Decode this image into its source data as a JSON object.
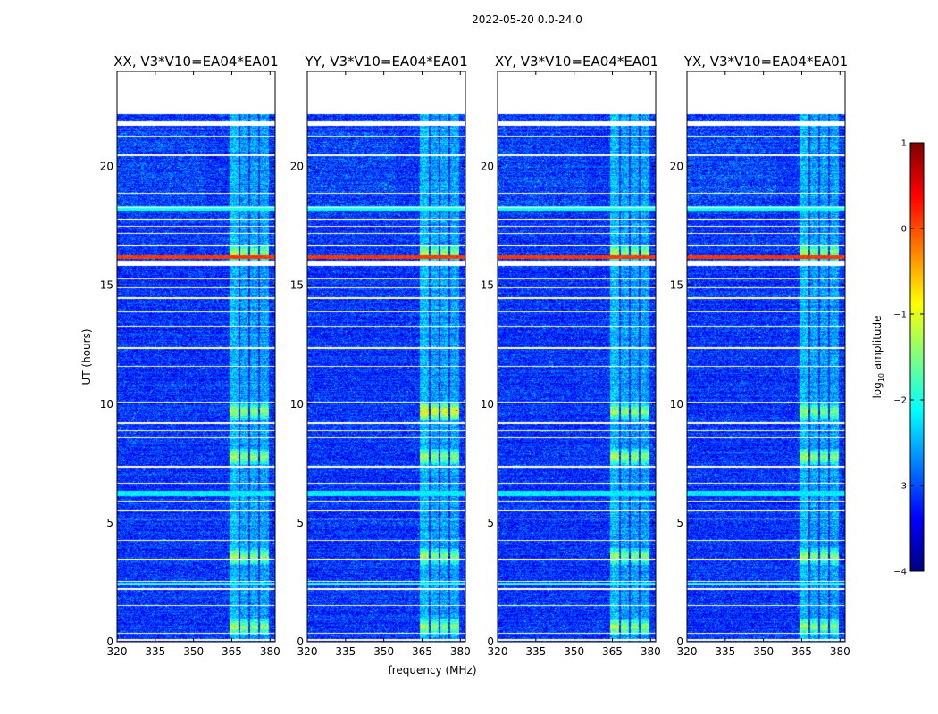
{
  "chart_data": {
    "type": "heatmap",
    "suptitle": "2022-05-20 0.0-24.0",
    "xlabel": "frequency (MHz)",
    "ylabel": "UT (hours)",
    "x_range": [
      320,
      382
    ],
    "y_range": [
      0,
      24
    ],
    "x_ticks": [
      320,
      335,
      350,
      365,
      380
    ],
    "y_ticks": [
      0,
      5,
      10,
      15,
      20
    ],
    "data_top_hour": 22.2,
    "rfi_band_mhz": [
      364,
      380
    ],
    "panels": [
      {
        "title": "XX, V3*V10=EA04*EA01"
      },
      {
        "title": "YY, V3*V10=EA04*EA01"
      },
      {
        "title": "XY, V3*V10=EA04*EA01"
      },
      {
        "title": "YX, V3*V10=EA04*EA01"
      }
    ],
    "colorbar": {
      "label_prefix": "log",
      "label_sub": "10",
      "label_suffix": " amplitude",
      "min": -4,
      "max": 1,
      "ticks": [
        -4,
        -3,
        -2,
        -1,
        0,
        1
      ],
      "tick_labels": [
        "−4",
        "−3",
        "−2",
        "−1",
        "0",
        "1"
      ],
      "colormap": "jet",
      "colors": [
        "#00007f",
        "#0000ff",
        "#007fff",
        "#00ffff",
        "#7fff7f",
        "#ffff00",
        "#ff7f00",
        "#ff0000",
        "#7f0000"
      ]
    },
    "flagged_gaps_hours": [
      0.12,
      0.36,
      1.55,
      2.25,
      2.42,
      2.55,
      3.5,
      4.3,
      5.2,
      5.55,
      5.95,
      6.7,
      7.4,
      8.6,
      8.9,
      9.25,
      10.1,
      11.6,
      12.4,
      13.3,
      13.9,
      14.5,
      14.9,
      15.3,
      16.7,
      17.2,
      17.5,
      17.8,
      18.3,
      18.9,
      20.5,
      21.3,
      21.6,
      21.9
    ],
    "bright_events_hours": [
      0.65,
      3.6,
      7.8,
      9.7,
      16.4
    ]
  }
}
